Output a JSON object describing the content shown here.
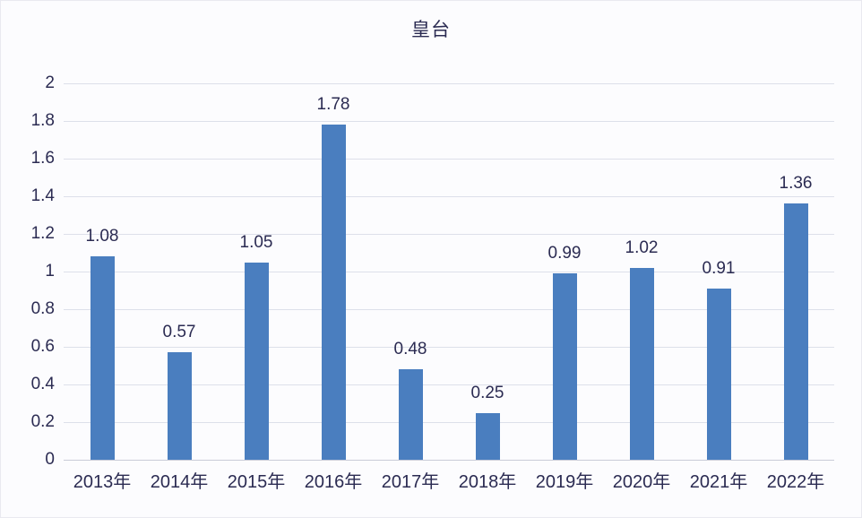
{
  "chart_data": {
    "type": "bar",
    "title": "皇台",
    "categories": [
      "2013年",
      "2014年",
      "2015年",
      "2016年",
      "2017年",
      "2018年",
      "2019年",
      "2020年",
      "2021年",
      "2022年"
    ],
    "values": [
      1.08,
      0.57,
      1.05,
      1.78,
      0.48,
      0.25,
      0.99,
      1.02,
      0.91,
      1.36
    ],
    "value_labels": [
      "1.08",
      "0.57",
      "1.05",
      "1.78",
      "0.48",
      "0.25",
      "0.99",
      "1.02",
      "0.91",
      "1.36"
    ],
    "xlabel": "",
    "ylabel": "",
    "ylim": [
      0,
      2
    ],
    "ytick_step": 0.2,
    "ytick_labels": [
      "0",
      "0.2",
      "0.4",
      "0.6",
      "0.8",
      "1",
      "1.2",
      "1.4",
      "1.6",
      "1.8",
      "2"
    ],
    "grid": true,
    "legend_position": "none",
    "colors": {
      "bar": "#4a7ebf",
      "text": "#2b2b52",
      "grid": "#dde0ea",
      "background": "#fcfcfe"
    }
  }
}
